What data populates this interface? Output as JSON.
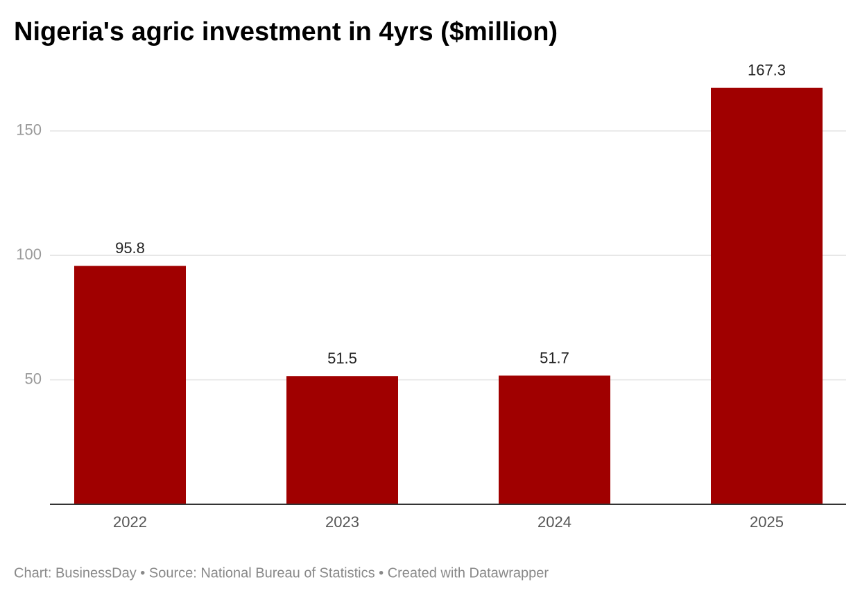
{
  "chart_data": {
    "type": "bar",
    "title": "Nigeria's agric investment in 4yrs ($million)",
    "categories": [
      "2022",
      "2023",
      "2024",
      "2025"
    ],
    "values": [
      95.8,
      51.5,
      51.7,
      167.3
    ],
    "color": "#a00000",
    "ylim": [
      0,
      170
    ],
    "yticks": [
      50,
      100,
      150
    ],
    "grid": true,
    "footer": "Chart: BusinessDay • Source: National Bureau of Statistics  • Created with Datawrapper"
  }
}
